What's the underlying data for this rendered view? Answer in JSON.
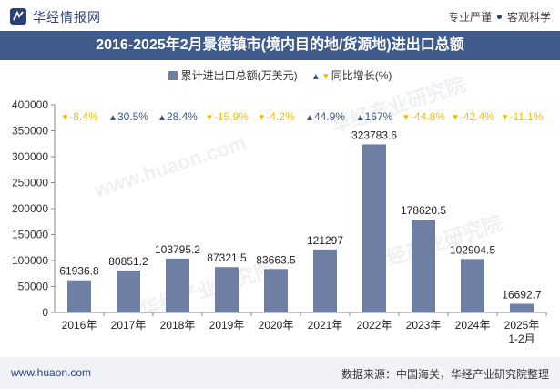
{
  "header": {
    "brand": "华经情报网",
    "slogan_left": "专业严谨",
    "slogan_right": "客观科学"
  },
  "title": "2016-2025年2月景德镇市(境内目的地/货源地)进出口总额",
  "legend": {
    "bar_label": "累计进出口总额(万美元)",
    "growth_label": "同比增长(%)"
  },
  "footer": {
    "website": "www.huaon.com",
    "source": "数据来源：中国海关，华经产业研究院整理"
  },
  "watermarks": [
    "华经产业研究院",
    "www.huaon.com",
    "华经产业研究院",
    "华经产业研究院"
  ],
  "colors": {
    "bar": "#6f7fa4",
    "up": "#3b5a85",
    "down": "#f0c000",
    "title_bg": "#3f5b8c"
  },
  "chart_data": {
    "type": "bar",
    "categories": [
      "2016年",
      "2017年",
      "2018年",
      "2019年",
      "2020年",
      "2021年",
      "2022年",
      "2023年",
      "2024年",
      "2025年\n1-2月"
    ],
    "series": [
      {
        "name": "累计进出口总额(万美元)",
        "values": [
          61936.8,
          80851.2,
          103795.2,
          87321.5,
          83663.5,
          121297,
          323783.6,
          178620.5,
          102904.5,
          16692.7
        ],
        "labels": [
          "61936.8",
          "80851.2",
          "103795.2",
          "87321.5",
          "83663.5",
          "121297",
          "323783.6",
          "178620.5",
          "102904.5",
          "16692.7"
        ]
      },
      {
        "name": "同比增长(%)",
        "values": [
          -8.4,
          30.5,
          28.4,
          -15.9,
          -4.2,
          44.9,
          167,
          -44.8,
          -42.4,
          -11.1
        ],
        "labels": [
          "-8.4%",
          "30.5%",
          "28.4%",
          "-15.9%",
          "-4.2%",
          "44.9%",
          "167%",
          "-44.8%",
          "-42.4%",
          "-11.1%"
        ]
      }
    ],
    "ylim": [
      0,
      400000
    ],
    "yticks": [
      0,
      50000,
      100000,
      150000,
      200000,
      250000,
      300000,
      350000,
      400000
    ],
    "title": "2016-2025年2月景德镇市(境内目的地/货源地)进出口总额",
    "xlabel": "",
    "ylabel": "",
    "legend_position": "top-center",
    "grid": false
  }
}
